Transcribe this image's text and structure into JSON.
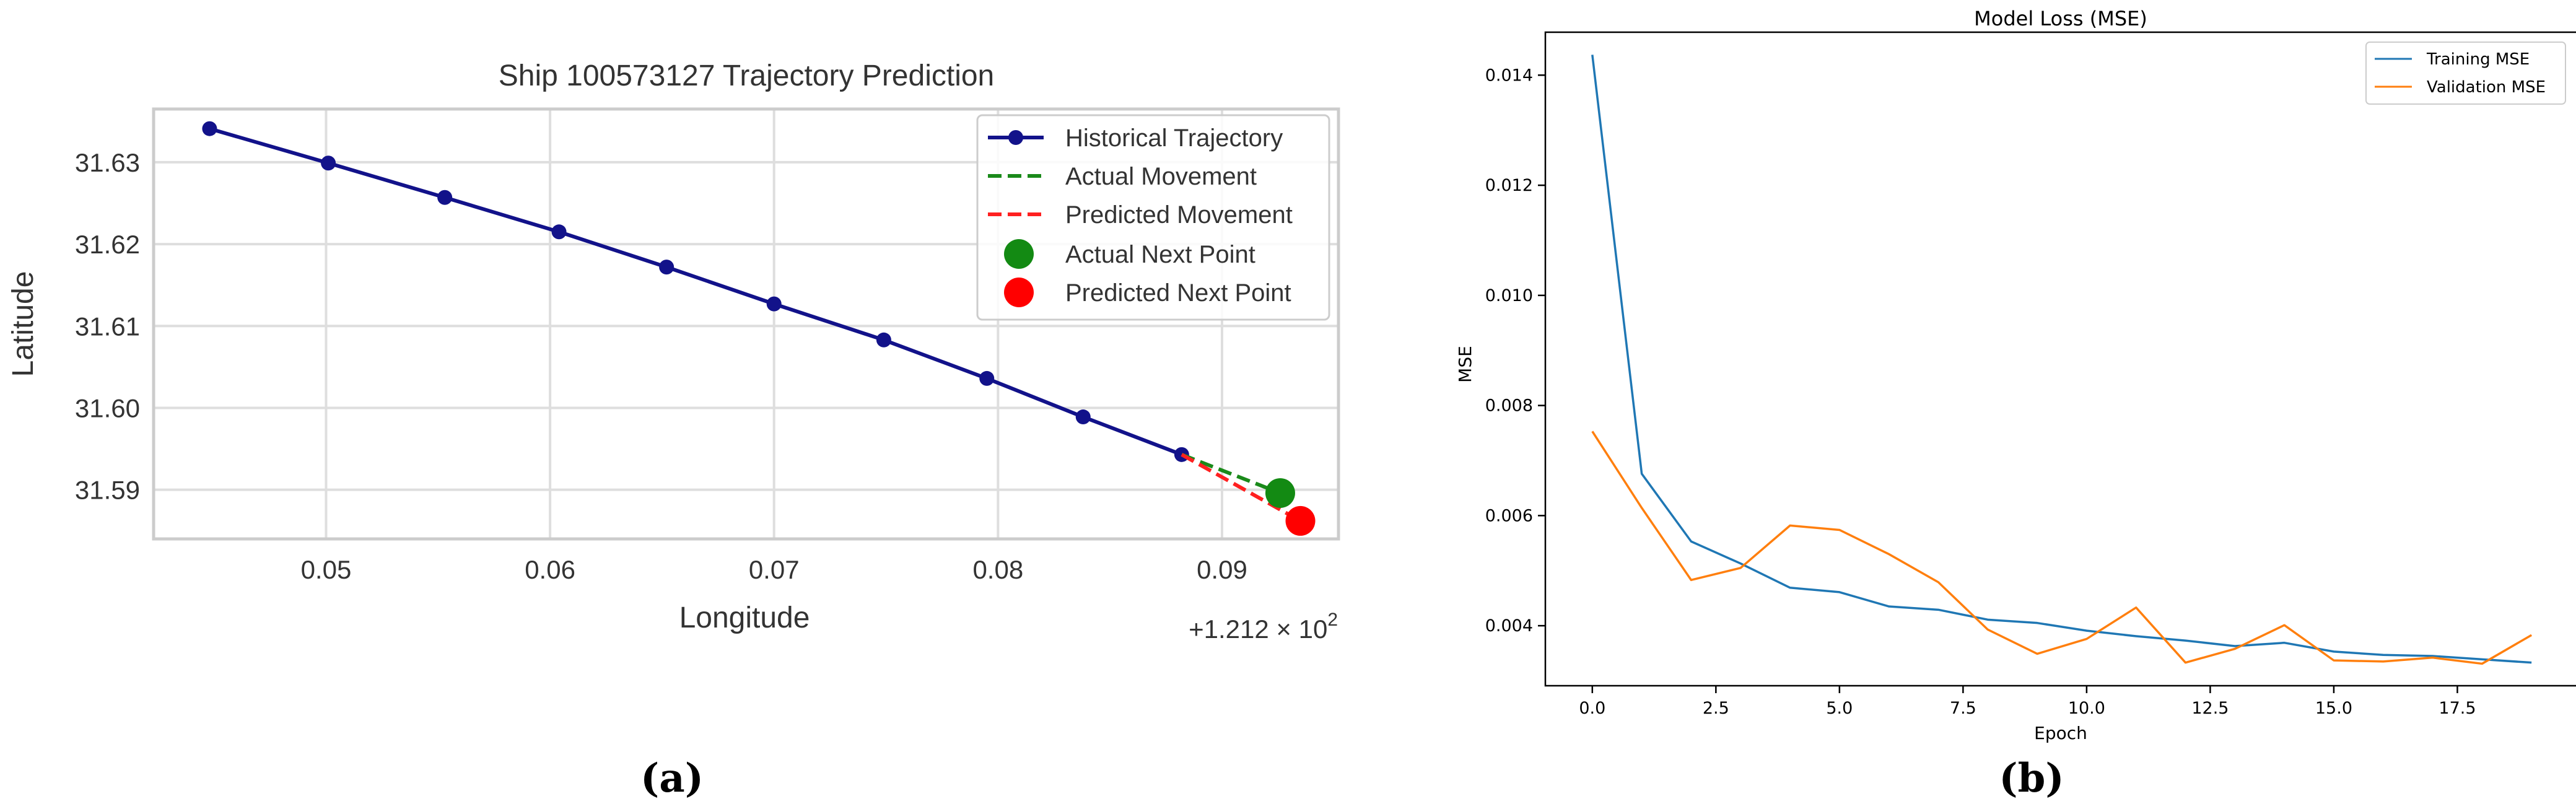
{
  "chart_data": [
    {
      "type": "line",
      "panel_label": "(a)",
      "title": "Ship 100573127 Trajectory Prediction",
      "xlabel": "Longitude",
      "ylabel": "Latitude",
      "x_offset_text": "+1.212 × 10",
      "x_offset_exponent": "2",
      "x_offset": 121.2,
      "xlim": [
        0.0423,
        0.0952
      ],
      "ylim": [
        31.584,
        31.6365
      ],
      "xticks": [
        0.05,
        0.06,
        0.07,
        0.08,
        0.09
      ],
      "xtick_labels": [
        "0.05",
        "0.06",
        "0.07",
        "0.08",
        "0.09"
      ],
      "yticks": [
        31.59,
        31.6,
        31.61,
        31.62,
        31.63
      ],
      "ytick_labels": [
        "31.59",
        "31.60",
        "31.61",
        "31.62",
        "31.63"
      ],
      "grid": true,
      "legend_position": "upper-right",
      "series": [
        {
          "name": "Historical Trajectory",
          "style": "line-markers",
          "color": "#12128a",
          "x": [
            0.0448,
            0.0501,
            0.0553,
            0.0604,
            0.0652,
            0.07,
            0.0749,
            0.0795,
            0.0838,
            0.0882
          ],
          "y": [
            31.6341,
            31.6299,
            31.6257,
            31.6215,
            31.6172,
            31.6127,
            31.6083,
            31.6036,
            31.5989,
            31.5943
          ]
        },
        {
          "name": "Actual Movement",
          "style": "dashed",
          "color": "#1a8a1a",
          "x": [
            0.0882,
            0.0926
          ],
          "y": [
            31.5943,
            31.5896
          ]
        },
        {
          "name": "Predicted Movement",
          "style": "dashed",
          "color": "#ff2020",
          "x": [
            0.0882,
            0.0935
          ],
          "y": [
            31.5943,
            31.5862
          ]
        },
        {
          "name": "Actual Next Point",
          "style": "point",
          "color": "#138a13",
          "x": [
            0.0926
          ],
          "y": [
            31.5896
          ]
        },
        {
          "name": "Predicted Next Point",
          "style": "point",
          "color": "#ff0000",
          "x": [
            0.0935
          ],
          "y": [
            31.5862
          ]
        }
      ]
    },
    {
      "type": "line",
      "panel_label": "(b)",
      "title": "Model Loss (MSE)",
      "xlabel": "Epoch",
      "ylabel": "MSE",
      "xlim": [
        -0.95,
        19.95
      ],
      "ylim": [
        0.00291,
        0.01478
      ],
      "xticks": [
        0,
        2.5,
        5,
        7.5,
        10,
        12.5,
        15,
        17.5
      ],
      "xtick_labels": [
        "0.0",
        "2.5",
        "5.0",
        "7.5",
        "10.0",
        "12.5",
        "15.0",
        "17.5"
      ],
      "yticks": [
        0.004,
        0.006,
        0.008,
        0.01,
        0.012,
        0.014
      ],
      "ytick_labels": [
        "0.004",
        "0.006",
        "0.008",
        "0.010",
        "0.012",
        "0.014"
      ],
      "grid": false,
      "legend_position": "upper-right",
      "x": [
        0,
        1,
        2,
        3,
        4,
        5,
        6,
        7,
        8,
        9,
        10,
        11,
        12,
        13,
        14,
        15,
        16,
        17,
        18,
        19
      ],
      "series": [
        {
          "name": "Training MSE",
          "color": "#1f77b4",
          "values": [
            0.01437,
            0.00676,
            0.00553,
            0.00513,
            0.00469,
            0.00461,
            0.00435,
            0.00429,
            0.00411,
            0.00405,
            0.00391,
            0.00381,
            0.00373,
            0.00363,
            0.00369,
            0.00353,
            0.00347,
            0.00345,
            0.00339,
            0.00333
          ]
        },
        {
          "name": "Validation MSE",
          "color": "#ff7f0e",
          "values": [
            0.00753,
            0.00614,
            0.00483,
            0.00505,
            0.00582,
            0.00574,
            0.0053,
            0.00479,
            0.00393,
            0.00349,
            0.00376,
            0.00433,
            0.00333,
            0.00358,
            0.00401,
            0.00337,
            0.00335,
            0.00342,
            0.00331,
            0.00383
          ]
        }
      ]
    }
  ]
}
